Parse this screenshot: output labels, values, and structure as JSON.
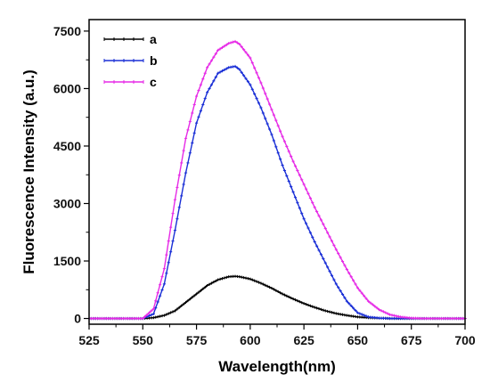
{
  "chart_data": {
    "type": "line",
    "xlabel": "Wavelength(nm)",
    "ylabel": "Fluorescence Intensity (a.u.)",
    "xlim": [
      525,
      700
    ],
    "ylim": [
      -150,
      7800
    ],
    "xticks": [
      525,
      550,
      575,
      600,
      625,
      650,
      675,
      700
    ],
    "yticks": [
      0,
      1500,
      3000,
      4500,
      6000,
      7500
    ],
    "grid": false,
    "legend_position": "top-left",
    "x": [
      525,
      545,
      550,
      555,
      560,
      565,
      570,
      575,
      580,
      585,
      590,
      593,
      595,
      600,
      605,
      610,
      615,
      620,
      625,
      630,
      635,
      640,
      645,
      650,
      655,
      660,
      665,
      670,
      675,
      680,
      690,
      700
    ],
    "series": [
      {
        "name": "a",
        "color": "#000000",
        "values": [
          0,
          0,
          0,
          20,
          80,
          200,
          420,
          640,
          860,
          1010,
          1090,
          1100,
          1090,
          1030,
          920,
          790,
          640,
          510,
          390,
          290,
          200,
          130,
          80,
          40,
          20,
          10,
          0,
          0,
          0,
          0,
          0,
          0
        ]
      },
      {
        "name": "b",
        "color": "#1a2fd6",
        "values": [
          0,
          0,
          0,
          120,
          900,
          2300,
          3800,
          5100,
          5900,
          6400,
          6550,
          6580,
          6500,
          6100,
          5500,
          4800,
          4000,
          3300,
          2600,
          2000,
          1450,
          900,
          450,
          150,
          40,
          10,
          0,
          0,
          0,
          0,
          0,
          0
        ]
      },
      {
        "name": "c",
        "color": "#e62ae6",
        "values": [
          0,
          0,
          0,
          250,
          1300,
          3100,
          4700,
          5800,
          6550,
          7000,
          7180,
          7230,
          7160,
          6800,
          6150,
          5450,
          4750,
          4100,
          3500,
          2900,
          2350,
          1800,
          1280,
          800,
          450,
          230,
          100,
          40,
          10,
          0,
          0,
          0
        ]
      }
    ]
  }
}
